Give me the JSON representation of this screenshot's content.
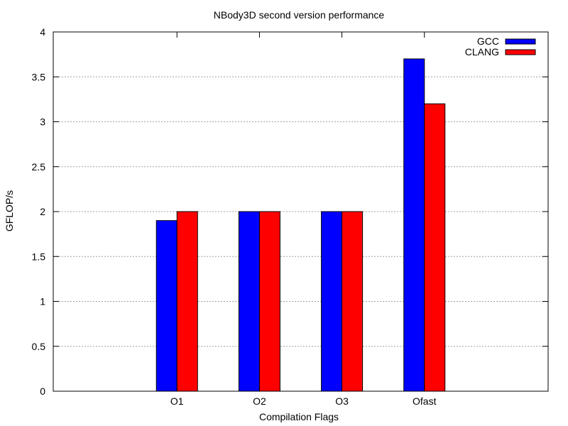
{
  "chart_data": {
    "type": "bar",
    "title": "NBody3D second version performance",
    "xlabel": "Compilation Flags",
    "ylabel": "GFLOP/s",
    "categories": [
      "O1",
      "O2",
      "O3",
      "Ofast"
    ],
    "series": [
      {
        "name": "GCC",
        "color": "#0000ff",
        "values": [
          1.9,
          2.0,
          2.0,
          3.7
        ]
      },
      {
        "name": "CLANG",
        "color": "#ff0000",
        "values": [
          2.0,
          2.0,
          2.0,
          3.2
        ]
      }
    ],
    "ylim": [
      0,
      4
    ],
    "yticks": [
      "0",
      "0.5",
      "1",
      "1.5",
      "2",
      "2.5",
      "3",
      "3.5",
      "4"
    ],
    "grid": true,
    "legend_position": "top-right"
  }
}
